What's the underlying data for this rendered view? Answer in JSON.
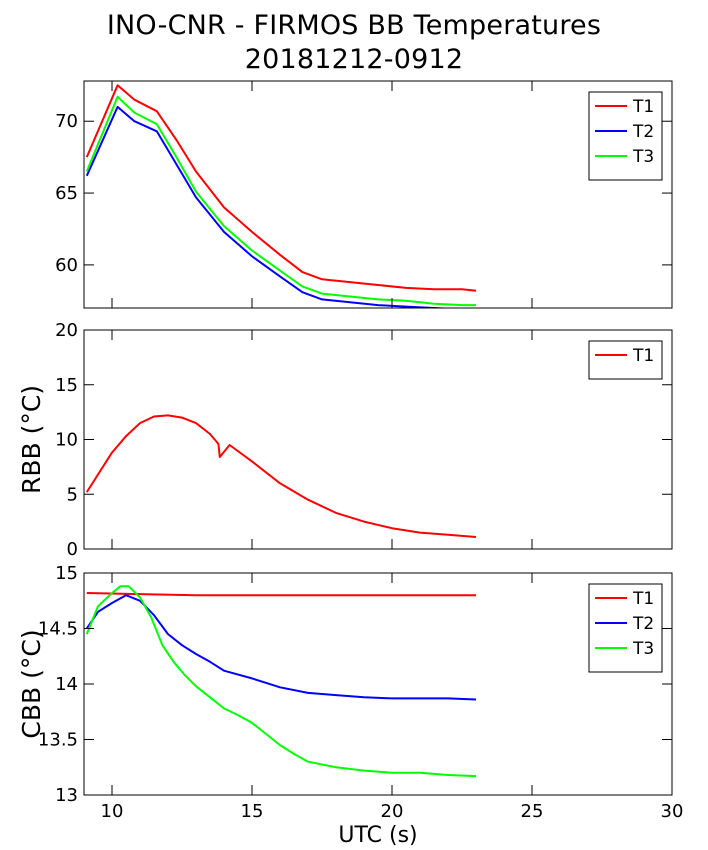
{
  "title": "INO-CNR - FIRMOS BB Temperatures",
  "subtitle": "20181212-0912",
  "colors": {
    "T1": "#ff0000",
    "T2": "#0000ff",
    "T3": "#00ff00"
  },
  "chart_data": [
    {
      "type": "line",
      "title": "",
      "xlabel": "",
      "ylabel": "",
      "xlim": [
        9,
        30
      ],
      "ylim": [
        57,
        72.8
      ],
      "xticks": [
        10,
        15,
        20,
        25,
        30
      ],
      "yticks": [
        60,
        65,
        70
      ],
      "show_xtick_labels": false,
      "legend": "top-right",
      "series": [
        {
          "name": "T1",
          "color": "#ff0000",
          "x": [
            9.1,
            10.2,
            10.8,
            11.6,
            12.3,
            13.0,
            14.0,
            15.0,
            16.0,
            16.8,
            17.5,
            18.5,
            19.5,
            20.5,
            21.5,
            22.5,
            23.0
          ],
          "y": [
            67.5,
            72.5,
            71.5,
            70.7,
            68.7,
            66.5,
            64.0,
            62.3,
            60.7,
            59.5,
            59.0,
            58.8,
            58.6,
            58.4,
            58.3,
            58.3,
            58.2
          ]
        },
        {
          "name": "T2",
          "color": "#0000ff",
          "x": [
            9.1,
            10.2,
            10.8,
            11.6,
            12.3,
            13.0,
            14.0,
            15.0,
            16.0,
            16.8,
            17.5,
            18.5,
            19.5,
            20.5,
            21.5,
            22.5,
            23.0
          ],
          "y": [
            66.2,
            71.0,
            70.0,
            69.3,
            67.0,
            64.7,
            62.3,
            60.6,
            59.2,
            58.1,
            57.6,
            57.4,
            57.2,
            57.1,
            57.0,
            56.9,
            56.9
          ]
        },
        {
          "name": "T3",
          "color": "#00ff00",
          "x": [
            9.1,
            10.2,
            10.8,
            11.6,
            12.3,
            13.0,
            14.0,
            15.0,
            16.0,
            16.8,
            17.5,
            18.5,
            19.5,
            20.5,
            21.5,
            22.5,
            23.0
          ],
          "y": [
            66.5,
            71.7,
            70.6,
            69.8,
            67.5,
            65.1,
            62.7,
            61.0,
            59.6,
            58.5,
            58.0,
            57.8,
            57.6,
            57.5,
            57.3,
            57.2,
            57.2
          ]
        }
      ]
    },
    {
      "type": "line",
      "title": "",
      "xlabel": "",
      "ylabel": "RBB (°C)",
      "xlim": [
        9,
        30
      ],
      "ylim": [
        0,
        20
      ],
      "xticks": [
        10,
        15,
        20,
        25,
        30
      ],
      "yticks": [
        0,
        5,
        10,
        15,
        20
      ],
      "show_xtick_labels": false,
      "legend": "top-right",
      "series": [
        {
          "name": "T1",
          "color": "#ff0000",
          "x": [
            9.1,
            9.5,
            10.0,
            10.5,
            11.0,
            11.5,
            12.0,
            12.5,
            13.0,
            13.5,
            13.8,
            13.85,
            14.2,
            15.0,
            16.0,
            17.0,
            18.0,
            19.0,
            20.0,
            21.0,
            22.0,
            23.0
          ],
          "y": [
            5.2,
            6.8,
            8.8,
            10.3,
            11.5,
            12.1,
            12.2,
            12.0,
            11.5,
            10.5,
            9.6,
            8.4,
            9.5,
            8.0,
            6.0,
            4.5,
            3.3,
            2.5,
            1.9,
            1.5,
            1.3,
            1.1
          ]
        }
      ]
    },
    {
      "type": "line",
      "title": "",
      "xlabel": "UTC (s)",
      "ylabel": "CBB (°C)",
      "xlim": [
        9,
        30
      ],
      "ylim": [
        13,
        15
      ],
      "xticks": [
        10,
        15,
        20,
        25,
        30
      ],
      "yticks": [
        13,
        13.5,
        14,
        14.5,
        15
      ],
      "show_xtick_labels": true,
      "legend": "top-right",
      "series": [
        {
          "name": "T1",
          "color": "#ff0000",
          "x": [
            9.1,
            11.0,
            13.0,
            15.0,
            17.0,
            19.0,
            21.0,
            23.0
          ],
          "y": [
            14.82,
            14.81,
            14.8,
            14.8,
            14.8,
            14.8,
            14.8,
            14.8
          ]
        },
        {
          "name": "T2",
          "color": "#0000ff",
          "x": [
            9.1,
            9.5,
            10.0,
            10.5,
            11.0,
            11.5,
            12.0,
            12.5,
            13.0,
            13.5,
            14.0,
            15.0,
            16.0,
            17.0,
            18.0,
            19.0,
            20.0,
            21.0,
            22.0,
            23.0
          ],
          "y": [
            14.5,
            14.65,
            14.73,
            14.8,
            14.75,
            14.62,
            14.45,
            14.35,
            14.27,
            14.2,
            14.12,
            14.05,
            13.97,
            13.92,
            13.9,
            13.88,
            13.87,
            13.87,
            13.87,
            13.86
          ]
        },
        {
          "name": "T3",
          "color": "#00ff00",
          "x": [
            9.1,
            9.5,
            10.0,
            10.3,
            10.6,
            11.0,
            11.4,
            11.8,
            12.2,
            12.6,
            13.0,
            13.5,
            14.0,
            14.5,
            15.0,
            15.5,
            16.0,
            16.5,
            17.0,
            18.0,
            19.0,
            20.0,
            21.0,
            22.0,
            23.0
          ],
          "y": [
            14.45,
            14.7,
            14.82,
            14.88,
            14.88,
            14.78,
            14.6,
            14.35,
            14.2,
            14.08,
            13.98,
            13.88,
            13.78,
            13.72,
            13.65,
            13.55,
            13.45,
            13.37,
            13.3,
            13.25,
            13.22,
            13.2,
            13.2,
            13.18,
            13.17
          ]
        }
      ]
    }
  ]
}
